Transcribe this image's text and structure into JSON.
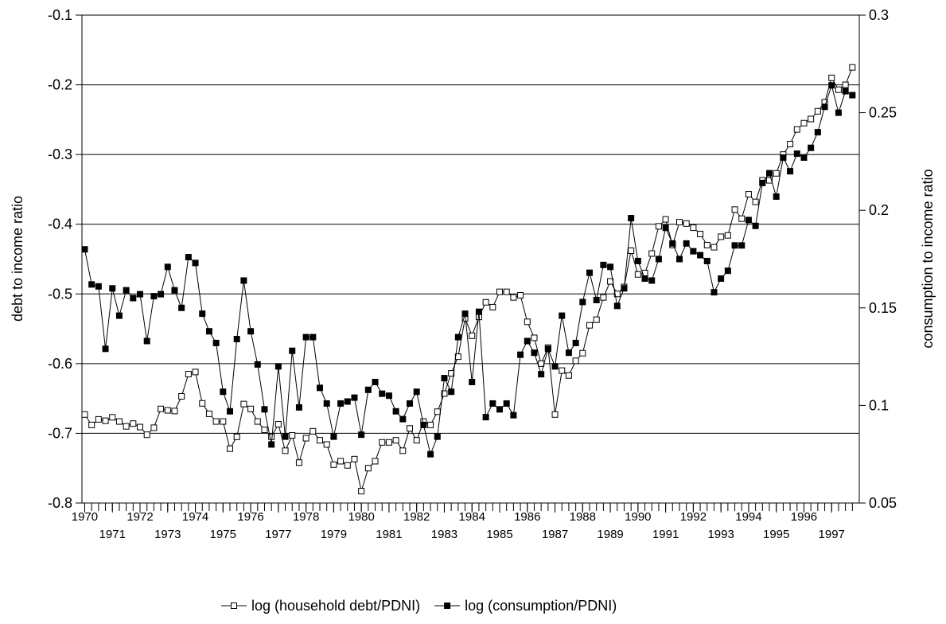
{
  "chart_data": {
    "type": "line",
    "y_label": "debt to income ratio",
    "y2_label": "consumption to income ratio",
    "x": [
      1970,
      1970.25,
      1970.5,
      1970.75,
      1971,
      1971.25,
      1971.5,
      1971.75,
      1972,
      1972.25,
      1972.5,
      1972.75,
      1973,
      1973.25,
      1973.5,
      1973.75,
      1974,
      1974.25,
      1974.5,
      1974.75,
      1975,
      1975.25,
      1975.5,
      1975.75,
      1976,
      1976.25,
      1976.5,
      1976.75,
      1977,
      1977.25,
      1977.5,
      1977.75,
      1978,
      1978.25,
      1978.5,
      1978.75,
      1979,
      1979.25,
      1979.5,
      1979.75,
      1980,
      1980.25,
      1980.5,
      1980.75,
      1981,
      1981.25,
      1981.5,
      1981.75,
      1982,
      1982.25,
      1982.5,
      1982.75,
      1983,
      1983.25,
      1983.5,
      1983.75,
      1984,
      1984.25,
      1984.5,
      1984.75,
      1985,
      1985.25,
      1985.5,
      1985.75,
      1986,
      1986.25,
      1986.5,
      1986.75,
      1987,
      1987.25,
      1987.5,
      1987.75,
      1988,
      1988.25,
      1988.5,
      1988.75,
      1989,
      1989.25,
      1989.5,
      1989.75,
      1990,
      1990.25,
      1990.5,
      1990.75,
      1991,
      1991.25,
      1991.5,
      1991.75,
      1992,
      1992.25,
      1992.5,
      1992.75,
      1993,
      1993.25,
      1993.5,
      1993.75,
      1994,
      1994.25,
      1994.5,
      1994.75,
      1995,
      1995.25,
      1995.5,
      1995.75,
      1996,
      1996.25,
      1996.5,
      1996.75,
      1997,
      1997.25,
      1997.5,
      1997.75
    ],
    "xlim": [
      1969.9,
      1998.0
    ],
    "xticks": [
      1970,
      1971,
      1972,
      1973,
      1974,
      1975,
      1976,
      1977,
      1978,
      1979,
      1980,
      1981,
      1982,
      1983,
      1984,
      1985,
      1986,
      1987,
      1988,
      1989,
      1990,
      1991,
      1992,
      1993,
      1994,
      1995,
      1996,
      1997
    ],
    "ylim": [
      -0.8,
      -0.1
    ],
    "yticks": [
      -0.8,
      -0.7,
      -0.6,
      -0.5,
      -0.4,
      -0.3,
      -0.2,
      -0.1
    ],
    "y2lim": [
      0.05,
      0.3
    ],
    "y2ticks": [
      0.05,
      0.1,
      0.15,
      0.2,
      0.25,
      0.3
    ],
    "grid": true,
    "series": [
      {
        "name": "log (household debt/PDNI)",
        "color": "#000000",
        "marker": "open-square",
        "values": [
          -0.673,
          -0.688,
          -0.68,
          -0.682,
          -0.677,
          -0.683,
          -0.69,
          -0.686,
          -0.691,
          -0.702,
          -0.692,
          -0.665,
          -0.667,
          -0.668,
          -0.647,
          -0.615,
          -0.612,
          -0.657,
          -0.672,
          -0.683,
          -0.683,
          -0.722,
          -0.705,
          -0.658,
          -0.665,
          -0.683,
          -0.695,
          -0.705,
          -0.687,
          -0.725,
          -0.703,
          -0.742,
          -0.707,
          -0.697,
          -0.71,
          -0.716,
          -0.745,
          -0.74,
          -0.746,
          -0.737,
          -0.783,
          -0.75,
          -0.74,
          -0.713,
          -0.713,
          -0.71,
          -0.725,
          -0.693,
          -0.71,
          -0.683,
          -0.688,
          -0.669,
          -0.643,
          -0.614,
          -0.59,
          -0.535,
          -0.56,
          -0.533,
          -0.512,
          -0.519,
          -0.497,
          -0.497,
          -0.505,
          -0.502,
          -0.54,
          -0.563,
          -0.6,
          -0.577,
          -0.673,
          -0.61,
          -0.617,
          -0.596,
          -0.585,
          -0.545,
          -0.537,
          -0.505,
          -0.482,
          -0.5,
          -0.49,
          -0.438,
          -0.472,
          -0.47,
          -0.442,
          -0.403,
          -0.393,
          -0.43,
          -0.397,
          -0.399,
          -0.405,
          -0.414,
          -0.43,
          -0.433,
          -0.418,
          -0.416,
          -0.379,
          -0.392,
          -0.357,
          -0.368,
          -0.337,
          -0.337,
          -0.327,
          -0.3,
          -0.285,
          -0.264,
          -0.255,
          -0.249,
          -0.238,
          -0.225,
          -0.19,
          -0.207,
          -0.2,
          -0.175
        ]
      },
      {
        "name": "log (consumption/PDNI)",
        "color": "#000000",
        "marker": "filled-square",
        "axis": "y2",
        "values": [
          0.18,
          0.162,
          0.161,
          0.129,
          0.16,
          0.146,
          0.159,
          0.155,
          0.157,
          0.133,
          0.156,
          0.157,
          0.171,
          0.159,
          0.15,
          0.176,
          0.173,
          0.147,
          0.138,
          0.132,
          0.107,
          0.097,
          0.134,
          0.164,
          0.138,
          0.121,
          0.098,
          0.08,
          0.12,
          0.084,
          0.128,
          0.099,
          0.135,
          0.135,
          0.109,
          0.101,
          0.084,
          0.101,
          0.102,
          0.104,
          0.085,
          0.108,
          0.112,
          0.106,
          0.105,
          0.097,
          0.093,
          0.101,
          0.107,
          0.09,
          0.075,
          0.084,
          0.114,
          0.107,
          0.135,
          0.147,
          0.112,
          0.148,
          0.094,
          0.101,
          0.098,
          0.101,
          0.095,
          0.126,
          0.133,
          0.127,
          0.116,
          0.129,
          0.12,
          0.146,
          0.127,
          0.132,
          0.153,
          0.168,
          0.154,
          0.172,
          0.171,
          0.151,
          0.16,
          0.196,
          0.174,
          0.165,
          0.164,
          0.175,
          0.191,
          0.183,
          0.175,
          0.183,
          0.179,
          0.177,
          0.174,
          0.158,
          0.165,
          0.169,
          0.182,
          0.182,
          0.195,
          0.192,
          0.214,
          0.219,
          0.207,
          0.227,
          0.22,
          0.229,
          0.227,
          0.232,
          0.24,
          0.253,
          0.264,
          0.25,
          0.261,
          0.259
        ]
      }
    ]
  }
}
